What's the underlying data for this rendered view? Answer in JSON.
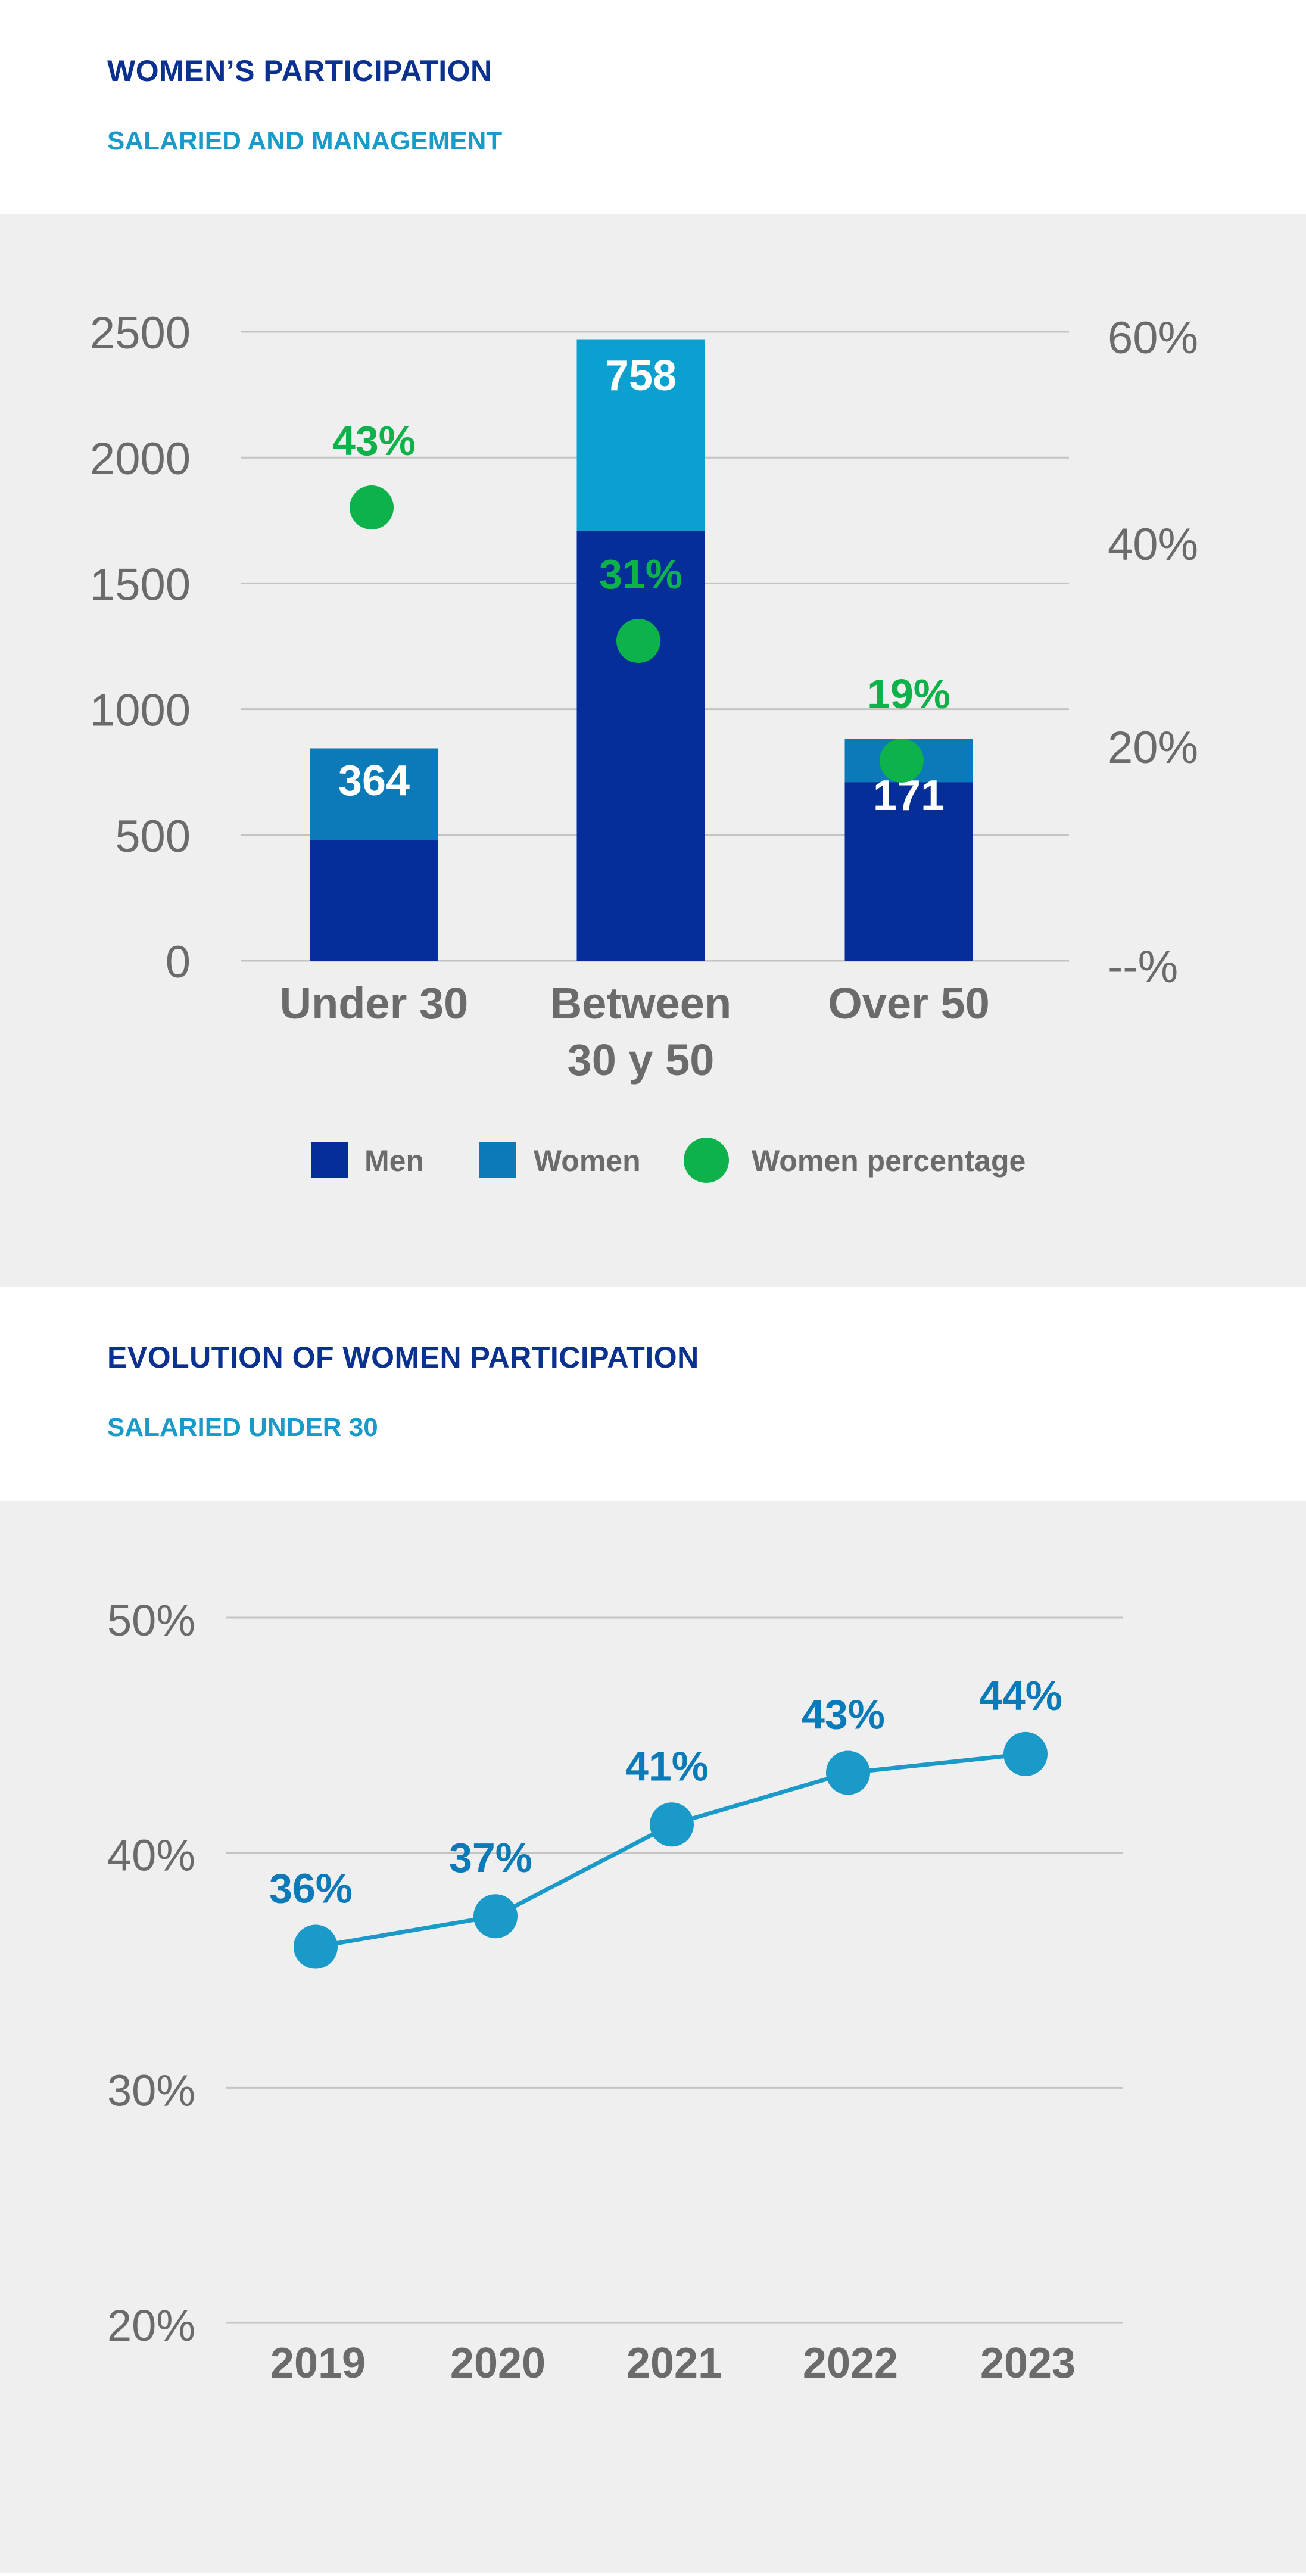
{
  "section1": {
    "title": "WOMEN’S PARTICIPATION",
    "subtitle": "SALARIED AND MANAGEMENT"
  },
  "section2": {
    "title": "EVOLUTION OF WOMEN PARTICIPATION",
    "subtitle": "SALARIED UNDER 30"
  },
  "colors": {
    "men": "#062e99",
    "women_1": "#0a7bb8",
    "women_2": "#0aa0cf",
    "women_3": "#0a7bb8",
    "percentage": "#0db34a",
    "line": "#1a9ac9",
    "line_label": "#0a7bb8",
    "axis_text": "#6b6b6b",
    "grid": "#c4c4c4"
  },
  "chart_data": [
    {
      "type": "bar",
      "stacked": true,
      "categories": [
        [
          "Under 30"
        ],
        [
          "Between",
          "30 y 50"
        ],
        [
          "Over 50"
        ]
      ],
      "series": [
        {
          "name": "Men",
          "values": [
            480,
            1710,
            710
          ]
        },
        {
          "name": "Women",
          "values": [
            364,
            758,
            171
          ],
          "labels": [
            "364",
            "758",
            "171"
          ]
        }
      ],
      "percentage_series": {
        "name": "Women percentage",
        "values": [
          43,
          31,
          19
        ],
        "labels": [
          "43%",
          "31%",
          "19%"
        ]
      },
      "ylim": [
        0,
        2500
      ],
      "yticks": [
        0,
        500,
        1000,
        1500,
        2000,
        2500
      ],
      "ytick_labels": [
        "0",
        "500",
        "1000",
        "1500",
        "2000",
        "2500"
      ],
      "y2ticks": [
        "--%",
        "20%",
        "40%",
        "60%"
      ],
      "legend": [
        "Men",
        "Women",
        "Women percentage"
      ],
      "legend_position": "bottom",
      "grid": true
    },
    {
      "type": "line",
      "x": [
        "2019",
        "2020",
        "2021",
        "2022",
        "2023"
      ],
      "values": [
        36,
        37.3,
        41.2,
        43.4,
        44.2
      ],
      "labels": [
        "36%",
        "37%",
        "41%",
        "43%",
        "44%"
      ],
      "ylim": [
        20,
        50
      ],
      "yticks": [
        20,
        30,
        40,
        50
      ],
      "ytick_labels": [
        "20%",
        "30%",
        "40%",
        "50%"
      ],
      "grid": true
    }
  ]
}
